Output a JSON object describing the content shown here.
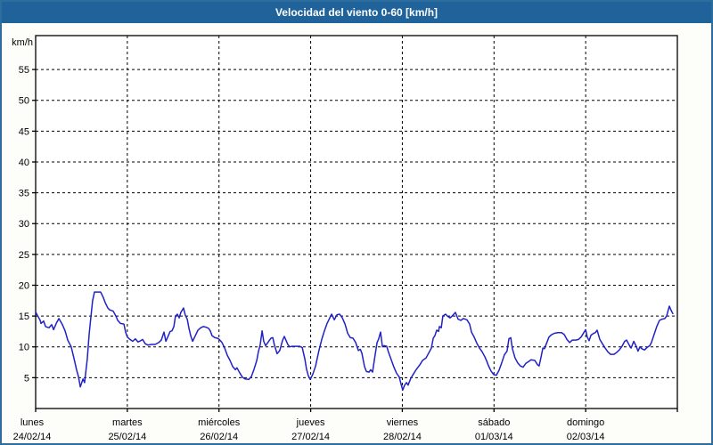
{
  "window": {
    "title": "Velocidad del viento 0-60 [km/h]"
  },
  "colors": {
    "title_bar": "#20639B",
    "frame": "#2E6E9E",
    "line": "#2121C8",
    "grid": "#000000",
    "text": "#000000",
    "plot_background": "#FFFFFF"
  },
  "chart_data": {
    "type": "line",
    "title": "Velocidad del viento 0-60 [km/h]",
    "ylabel": "km/h",
    "xlabel": "",
    "ylim": [
      0,
      60.5
    ],
    "yticks": [
      5,
      10,
      15,
      20,
      25,
      30,
      35,
      40,
      45,
      50,
      55
    ],
    "xlim": [
      0,
      168
    ],
    "x_unit": "hours",
    "hours_per_day": 24,
    "grid": "dashed",
    "legend_position": "none",
    "days": [
      {
        "name": "lunes",
        "date": "24/02/14"
      },
      {
        "name": "martes",
        "date": "25/02/14"
      },
      {
        "name": "miércoles",
        "date": "26/02/14"
      },
      {
        "name": "jueves",
        "date": "27/02/14"
      },
      {
        "name": "viernes",
        "date": "28/02/14"
      },
      {
        "name": "sábado",
        "date": "01/03/14"
      },
      {
        "name": "domingo",
        "date": "02/03/14"
      }
    ],
    "series": [
      {
        "name": "Velocidad del viento",
        "color": "#2121C8",
        "points": [
          [
            0,
            15.7
          ],
          [
            0.2,
            15.4
          ],
          [
            1.2,
            14.3
          ],
          [
            1.4,
            13.8
          ],
          [
            2.1,
            14.2
          ],
          [
            2.6,
            13.3
          ],
          [
            3.5,
            13.1
          ],
          [
            4.2,
            13.6
          ],
          [
            4.7,
            12.8
          ],
          [
            5.4,
            13.8
          ],
          [
            6.1,
            14.6
          ],
          [
            7,
            13.6
          ],
          [
            7.7,
            12.6
          ],
          [
            8.4,
            11.1
          ],
          [
            9.3,
            10
          ],
          [
            10,
            8.2
          ],
          [
            10.7,
            6.3
          ],
          [
            11.2,
            5.2
          ],
          [
            11.7,
            3.5
          ],
          [
            12.4,
            4.8
          ],
          [
            12.8,
            4.2
          ],
          [
            13.5,
            8
          ],
          [
            14,
            12
          ],
          [
            14.5,
            15
          ],
          [
            14.9,
            17.5
          ],
          [
            15.4,
            18.9
          ],
          [
            17,
            18.9
          ],
          [
            17.7,
            18
          ],
          [
            18.2,
            17.2
          ],
          [
            18.9,
            16.3
          ],
          [
            19.4,
            16
          ],
          [
            20.3,
            15.8
          ],
          [
            21,
            15
          ],
          [
            21.5,
            14.3
          ],
          [
            22.2,
            13.8
          ],
          [
            23.1,
            13.7
          ],
          [
            23.6,
            12.3
          ],
          [
            24,
            11.6
          ],
          [
            24.7,
            11.2
          ],
          [
            25.4,
            10.9
          ],
          [
            26.1,
            11.3
          ],
          [
            26.8,
            10.8
          ],
          [
            27.5,
            11
          ],
          [
            28,
            11.2
          ],
          [
            28.7,
            10.5
          ],
          [
            29.4,
            10.3
          ],
          [
            30.3,
            10.4
          ],
          [
            31.3,
            10.4
          ],
          [
            32.2,
            10.7
          ],
          [
            32.9,
            11.1
          ],
          [
            33.6,
            12.4
          ],
          [
            34.1,
            10.9
          ],
          [
            34.8,
            11.9
          ],
          [
            35.2,
            12.5
          ],
          [
            35.7,
            12.6
          ],
          [
            36.2,
            13.3
          ],
          [
            36.6,
            15
          ],
          [
            37.1,
            15.3
          ],
          [
            37.6,
            14.7
          ],
          [
            38,
            15.6
          ],
          [
            38.7,
            16.3
          ],
          [
            39.2,
            15.1
          ],
          [
            39.7,
            14.5
          ],
          [
            40.1,
            13.1
          ],
          [
            40.6,
            11.8
          ],
          [
            41.1,
            10.9
          ],
          [
            41.8,
            11.8
          ],
          [
            42.5,
            12.7
          ],
          [
            43.2,
            13.1
          ],
          [
            43.9,
            13.3
          ],
          [
            44.6,
            13.2
          ],
          [
            45.3,
            13
          ],
          [
            45.7,
            12.6
          ],
          [
            46.2,
            11.8
          ],
          [
            46.9,
            11.5
          ],
          [
            47.6,
            11.4
          ],
          [
            48.1,
            11.2
          ],
          [
            48.8,
            10.7
          ],
          [
            49.5,
            9.8
          ],
          [
            50.2,
            8.6
          ],
          [
            50.9,
            7.8
          ],
          [
            51.6,
            6.8
          ],
          [
            52.3,
            6.3
          ],
          [
            52.7,
            6.6
          ],
          [
            53.4,
            5.8
          ],
          [
            54.1,
            5.1
          ],
          [
            54.8,
            4.8
          ],
          [
            55.8,
            4.7
          ],
          [
            56.5,
            5.2
          ],
          [
            57.2,
            6.4
          ],
          [
            57.9,
            7.8
          ],
          [
            58.3,
            9.2
          ],
          [
            58.8,
            10.4
          ],
          [
            59.3,
            12.6
          ],
          [
            59.7,
            10.9
          ],
          [
            60.2,
            10.2
          ],
          [
            60.9,
            10.8
          ],
          [
            61.6,
            11.4
          ],
          [
            62.1,
            11.5
          ],
          [
            62.5,
            10.3
          ],
          [
            63.2,
            8.9
          ],
          [
            63.9,
            9.4
          ],
          [
            64.6,
            11
          ],
          [
            65.1,
            11.7
          ],
          [
            65.6,
            11
          ],
          [
            66,
            10.4
          ],
          [
            66.5,
            10
          ],
          [
            67.2,
            10.1
          ],
          [
            68.1,
            10.1
          ],
          [
            69.1,
            10.1
          ],
          [
            69.8,
            9.9
          ],
          [
            70.5,
            8
          ],
          [
            70.9,
            6.4
          ],
          [
            71.4,
            5.3
          ],
          [
            71.9,
            4.7
          ],
          [
            72.6,
            5.6
          ],
          [
            73.3,
            6.9
          ],
          [
            74.2,
            9.5
          ],
          [
            74.9,
            11.2
          ],
          [
            75.6,
            12.6
          ],
          [
            76.3,
            13.8
          ],
          [
            77,
            14.7
          ],
          [
            77.5,
            15.3
          ],
          [
            78.2,
            14.4
          ],
          [
            78.9,
            15.2
          ],
          [
            79.6,
            15.3
          ],
          [
            80.3,
            14.7
          ],
          [
            81,
            13.7
          ],
          [
            81.7,
            12.2
          ],
          [
            82.4,
            11.5
          ],
          [
            83.1,
            11.4
          ],
          [
            83.8,
            10.7
          ],
          [
            84.5,
            9.4
          ],
          [
            85,
            9.6
          ],
          [
            85.4,
            9
          ],
          [
            86.1,
            6.8
          ],
          [
            86.6,
            6
          ],
          [
            87.3,
            5.9
          ],
          [
            87.7,
            6.3
          ],
          [
            88.2,
            5.9
          ],
          [
            88.9,
            8.8
          ],
          [
            89.4,
            10.7
          ],
          [
            89.8,
            11.3
          ],
          [
            90.3,
            12.4
          ],
          [
            90.8,
            10
          ],
          [
            91.2,
            10.2
          ],
          [
            91.9,
            10.1
          ],
          [
            92.4,
            9.1
          ],
          [
            93.1,
            7.9
          ],
          [
            93.8,
            6.7
          ],
          [
            94.5,
            5.7
          ],
          [
            95.2,
            5.1
          ],
          [
            95.7,
            3.9
          ],
          [
            96.1,
            3
          ],
          [
            96.6,
            3.8
          ],
          [
            97.1,
            4.2
          ],
          [
            97.5,
            3.8
          ],
          [
            98.2,
            4.9
          ],
          [
            98.9,
            5.6
          ],
          [
            99.6,
            6.3
          ],
          [
            100.6,
            7.1
          ],
          [
            101.3,
            7.8
          ],
          [
            102.2,
            8.2
          ],
          [
            102.9,
            9
          ],
          [
            103.6,
            9.8
          ],
          [
            104.1,
            11.4
          ],
          [
            104.5,
            11.8
          ],
          [
            105,
            12.7
          ],
          [
            105.5,
            12.5
          ],
          [
            105.7,
            13.3
          ],
          [
            106.2,
            13.1
          ],
          [
            106.6,
            15
          ],
          [
            107.3,
            15.3
          ],
          [
            107.8,
            15
          ],
          [
            108.5,
            14.7
          ],
          [
            109.2,
            15.1
          ],
          [
            109.9,
            15.6
          ],
          [
            110.6,
            14.5
          ],
          [
            111.3,
            14.3
          ],
          [
            112,
            14.6
          ],
          [
            112.9,
            14.4
          ],
          [
            113.6,
            13.7
          ],
          [
            114.1,
            12.4
          ],
          [
            114.8,
            11.6
          ],
          [
            115.5,
            10.6
          ],
          [
            116.2,
            9.8
          ],
          [
            116.9,
            9.2
          ],
          [
            117.6,
            8.4
          ],
          [
            118.1,
            7.7
          ],
          [
            118.5,
            7
          ],
          [
            119.2,
            6.1
          ],
          [
            119.9,
            5.5
          ],
          [
            120.6,
            5.4
          ],
          [
            121.3,
            6.2
          ],
          [
            122,
            7.4
          ],
          [
            122.7,
            8.7
          ],
          [
            123.4,
            9.3
          ],
          [
            123.9,
            11.3
          ],
          [
            124.4,
            11.5
          ],
          [
            124.8,
            9.7
          ],
          [
            125.5,
            8.2
          ],
          [
            126.2,
            7.4
          ],
          [
            126.9,
            6.9
          ],
          [
            127.6,
            6.7
          ],
          [
            128.3,
            7.3
          ],
          [
            129,
            7.6
          ],
          [
            129.7,
            7.9
          ],
          [
            130.7,
            7.8
          ],
          [
            131.4,
            7.1
          ],
          [
            131.8,
            6.9
          ],
          [
            132.3,
            8.3
          ],
          [
            132.8,
            9.8
          ],
          [
            133.2,
            9.7
          ],
          [
            133.7,
            10.5
          ],
          [
            134.4,
            11.6
          ],
          [
            135.1,
            12
          ],
          [
            135.8,
            12.2
          ],
          [
            136.7,
            12.3
          ],
          [
            137.7,
            12.3
          ],
          [
            138.4,
            12
          ],
          [
            139.1,
            11.2
          ],
          [
            139.8,
            10.7
          ],
          [
            140.5,
            11.1
          ],
          [
            141.4,
            11.1
          ],
          [
            142.1,
            11.2
          ],
          [
            142.8,
            11.6
          ],
          [
            143.5,
            12.3
          ],
          [
            144,
            12.8
          ],
          [
            144.4,
            11.6
          ],
          [
            144.9,
            11
          ],
          [
            145.4,
            11.9
          ],
          [
            146.1,
            12.2
          ],
          [
            146.5,
            12.3
          ],
          [
            147,
            12.7
          ],
          [
            147.7,
            11.2
          ],
          [
            148.4,
            10.5
          ],
          [
            149.1,
            9.8
          ],
          [
            149.8,
            9.2
          ],
          [
            150.5,
            8.8
          ],
          [
            151.4,
            8.8
          ],
          [
            152.1,
            9.1
          ],
          [
            152.8,
            9.5
          ],
          [
            153.5,
            10.1
          ],
          [
            154.2,
            10.9
          ],
          [
            154.7,
            11.1
          ],
          [
            155.4,
            10.3
          ],
          [
            155.9,
            9.8
          ],
          [
            156.6,
            10.9
          ],
          [
            157.3,
            10
          ],
          [
            157.7,
            9.3
          ],
          [
            158.2,
            10
          ],
          [
            158.7,
            9.7
          ],
          [
            159.4,
            9.5
          ],
          [
            160.1,
            9.9
          ],
          [
            160.8,
            10.2
          ],
          [
            161.2,
            10.7
          ],
          [
            161.9,
            12
          ],
          [
            162.6,
            13.3
          ],
          [
            163.3,
            14.3
          ],
          [
            164,
            14.5
          ],
          [
            164.7,
            14.6
          ],
          [
            165.2,
            15
          ],
          [
            165.9,
            16.6
          ],
          [
            166.4,
            15.9
          ],
          [
            166.8,
            15.4
          ]
        ]
      }
    ]
  }
}
